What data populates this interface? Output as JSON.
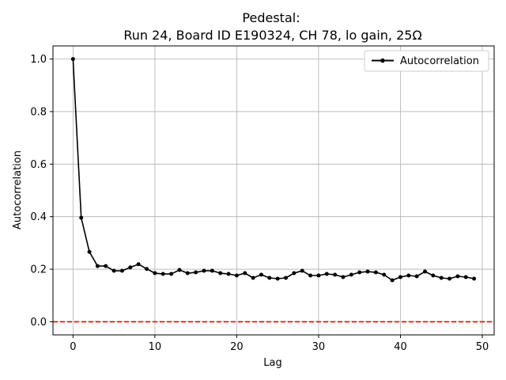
{
  "chart_data": {
    "type": "line",
    "title_line1": "Pedestal:",
    "title_line2": "Run 24, Board ID E190324, CH 78, lo gain, 25Ω",
    "xlabel": "Lag",
    "ylabel": "Autocorrelation",
    "xlim": [
      -2.45,
      51.45
    ],
    "ylim": [
      -0.05,
      1.05
    ],
    "xticks": [
      0,
      10,
      20,
      30,
      40,
      50
    ],
    "yticks": [
      0.0,
      0.2,
      0.4,
      0.6,
      0.8,
      1.0
    ],
    "xtick_labels": [
      "0",
      "10",
      "20",
      "30",
      "40",
      "50"
    ],
    "ytick_labels": [
      "0.0",
      "0.2",
      "0.4",
      "0.6",
      "0.8",
      "1.0"
    ],
    "grid": true,
    "legend_position": "top-right",
    "series": [
      {
        "name": "Autocorrelation",
        "color": "#000000",
        "marker": "circle",
        "x": [
          0,
          1,
          2,
          3,
          4,
          5,
          6,
          7,
          8,
          9,
          10,
          11,
          12,
          13,
          14,
          15,
          16,
          17,
          18,
          19,
          20,
          21,
          22,
          23,
          24,
          25,
          26,
          27,
          28,
          29,
          30,
          31,
          32,
          33,
          34,
          35,
          36,
          37,
          38,
          39,
          40,
          41,
          42,
          43,
          44,
          45,
          46,
          47,
          48,
          49
        ],
        "y": [
          1.0,
          0.396,
          0.266,
          0.212,
          0.212,
          0.194,
          0.194,
          0.207,
          0.219,
          0.201,
          0.185,
          0.182,
          0.182,
          0.197,
          0.185,
          0.188,
          0.194,
          0.194,
          0.185,
          0.182,
          0.176,
          0.185,
          0.167,
          0.179,
          0.167,
          0.164,
          0.167,
          0.185,
          0.194,
          0.176,
          0.176,
          0.182,
          0.179,
          0.17,
          0.179,
          0.188,
          0.191,
          0.188,
          0.179,
          0.158,
          0.17,
          0.176,
          0.173,
          0.191,
          0.176,
          0.167,
          0.164,
          0.173,
          0.17,
          0.164
        ]
      }
    ],
    "hlines": [
      {
        "y": 0.0,
        "color": "#ff0000",
        "style": "dashed"
      }
    ]
  }
}
